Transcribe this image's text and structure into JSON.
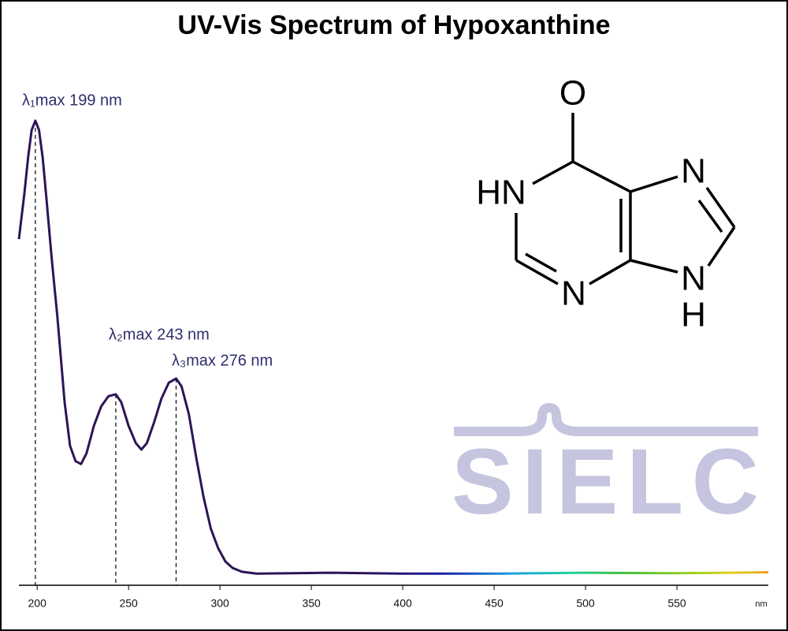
{
  "chart_data": {
    "type": "line",
    "title": "UV-Vis Spectrum of Hypoxanthine",
    "x": [
      190,
      193,
      195,
      197,
      199,
      201,
      203,
      205,
      208,
      211,
      215,
      218,
      221,
      224,
      227,
      231,
      235,
      239,
      243,
      246,
      250,
      254,
      257,
      260,
      264,
      268,
      272,
      276,
      279,
      283,
      287,
      291,
      295,
      299,
      303,
      307,
      312,
      320,
      360,
      400,
      450,
      500,
      550,
      580,
      600
    ],
    "values": [
      0.745,
      0.844,
      0.92,
      0.98,
      1.0,
      0.98,
      0.92,
      0.835,
      0.7,
      0.58,
      0.394,
      0.3,
      0.267,
      0.261,
      0.284,
      0.343,
      0.385,
      0.407,
      0.411,
      0.394,
      0.343,
      0.306,
      0.292,
      0.306,
      0.351,
      0.402,
      0.436,
      0.445,
      0.428,
      0.368,
      0.275,
      0.19,
      0.122,
      0.08,
      0.051,
      0.037,
      0.029,
      0.025,
      0.027,
      0.025,
      0.025,
      0.027,
      0.026,
      0.027,
      0.028
    ],
    "color": "#2d1457",
    "gradient": [
      {
        "at": 380,
        "color": "#2d1457"
      },
      {
        "at": 420,
        "color": "#1a1aa0"
      },
      {
        "at": 460,
        "color": "#1aa0e0"
      },
      {
        "at": 490,
        "color": "#20d0a0"
      },
      {
        "at": 520,
        "color": "#40c040"
      },
      {
        "at": 560,
        "color": "#a0d020"
      },
      {
        "at": 580,
        "color": "#e0d020"
      },
      {
        "at": 600,
        "color": "#f0a020"
      }
    ],
    "xlim": [
      190,
      600
    ],
    "xticks": [
      200,
      250,
      300,
      350,
      400,
      450,
      500,
      550
    ],
    "x_unit": "nm",
    "ylim": [
      0,
      1
    ],
    "annotations": [
      {
        "text": "λ₁max  199 nm",
        "x": 199
      },
      {
        "text": "λ₂max  243 nm",
        "x": 243
      },
      {
        "text": "λ₃max  276 nm",
        "x": 276
      }
    ]
  },
  "structure": {
    "atoms": [
      "O",
      "HN",
      "N",
      "N",
      "N",
      "H"
    ]
  },
  "watermark": "SIELC"
}
